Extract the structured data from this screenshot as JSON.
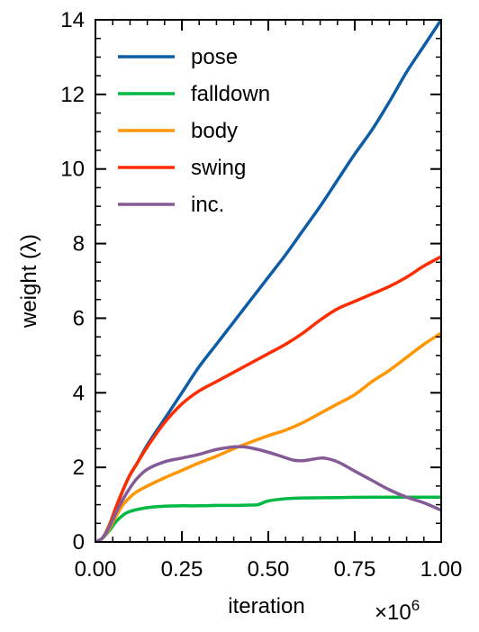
{
  "chart_data": {
    "type": "line",
    "xlabel": "iteration",
    "ylabel": "weight (λ)",
    "x_multiplier": "×10",
    "x_multiplier_exp": "6",
    "xlim": [
      0,
      1.0
    ],
    "ylim": [
      0,
      14
    ],
    "x_ticks": [
      "0.00",
      "0.25",
      "0.50",
      "0.75",
      "1.00"
    ],
    "y_ticks": [
      "0",
      "2",
      "4",
      "6",
      "8",
      "10",
      "12",
      "14"
    ],
    "grid": false,
    "legend_position": "top-left",
    "series": [
      {
        "name": "pose",
        "color": "#0C5DA5",
        "x": [
          0,
          0.02,
          0.04,
          0.06,
          0.08,
          0.1,
          0.12,
          0.15,
          0.2,
          0.25,
          0.3,
          0.35,
          0.4,
          0.45,
          0.5,
          0.55,
          0.6,
          0.65,
          0.7,
          0.75,
          0.8,
          0.85,
          0.9,
          0.95,
          1.0
        ],
        "y": [
          0,
          0.1,
          0.4,
          0.9,
          1.4,
          1.8,
          2.1,
          2.6,
          3.3,
          4.0,
          4.7,
          5.3,
          5.9,
          6.5,
          7.1,
          7.7,
          8.35,
          9.0,
          9.7,
          10.4,
          11.05,
          11.8,
          12.6,
          13.3,
          14.0
        ]
      },
      {
        "name": "falldown",
        "color": "#00B945",
        "x": [
          0,
          0.02,
          0.04,
          0.06,
          0.08,
          0.1,
          0.15,
          0.2,
          0.25,
          0.3,
          0.35,
          0.4,
          0.45,
          0.47,
          0.5,
          0.55,
          0.6,
          0.7,
          0.8,
          0.9,
          1.0
        ],
        "y": [
          0,
          0.1,
          0.3,
          0.55,
          0.72,
          0.82,
          0.92,
          0.96,
          0.97,
          0.97,
          0.98,
          0.98,
          0.99,
          1.0,
          1.1,
          1.16,
          1.18,
          1.19,
          1.2,
          1.2,
          1.2
        ]
      },
      {
        "name": "body",
        "color": "#FF9500",
        "x": [
          0,
          0.02,
          0.04,
          0.06,
          0.08,
          0.1,
          0.12,
          0.15,
          0.2,
          0.25,
          0.3,
          0.35,
          0.4,
          0.45,
          0.5,
          0.55,
          0.6,
          0.65,
          0.7,
          0.75,
          0.8,
          0.85,
          0.9,
          0.95,
          1.0
        ],
        "y": [
          0,
          0.1,
          0.35,
          0.7,
          1.0,
          1.2,
          1.35,
          1.5,
          1.72,
          1.92,
          2.12,
          2.3,
          2.5,
          2.68,
          2.85,
          3.0,
          3.2,
          3.45,
          3.7,
          3.95,
          4.3,
          4.6,
          4.95,
          5.3,
          5.6
        ]
      },
      {
        "name": "swing",
        "color": "#FF2C00",
        "x": [
          0,
          0.02,
          0.04,
          0.06,
          0.08,
          0.1,
          0.12,
          0.15,
          0.2,
          0.25,
          0.3,
          0.35,
          0.4,
          0.45,
          0.5,
          0.55,
          0.6,
          0.65,
          0.7,
          0.75,
          0.8,
          0.85,
          0.9,
          0.95,
          1.0
        ],
        "y": [
          0,
          0.1,
          0.45,
          0.95,
          1.4,
          1.8,
          2.1,
          2.55,
          3.2,
          3.7,
          4.05,
          4.3,
          4.55,
          4.8,
          5.05,
          5.3,
          5.6,
          5.95,
          6.25,
          6.45,
          6.65,
          6.85,
          7.1,
          7.4,
          7.65
        ]
      },
      {
        "name": "inc.",
        "color": "#845B97",
        "x": [
          0,
          0.02,
          0.04,
          0.06,
          0.08,
          0.1,
          0.12,
          0.15,
          0.2,
          0.25,
          0.3,
          0.35,
          0.4,
          0.43,
          0.47,
          0.52,
          0.57,
          0.6,
          0.63,
          0.66,
          0.7,
          0.75,
          0.8,
          0.85,
          0.9,
          0.95,
          1.0
        ],
        "y": [
          0,
          0.1,
          0.4,
          0.8,
          1.15,
          1.45,
          1.7,
          1.95,
          2.15,
          2.25,
          2.35,
          2.48,
          2.55,
          2.55,
          2.48,
          2.35,
          2.2,
          2.18,
          2.22,
          2.25,
          2.15,
          1.9,
          1.65,
          1.4,
          1.2,
          1.05,
          0.85
        ]
      }
    ]
  }
}
